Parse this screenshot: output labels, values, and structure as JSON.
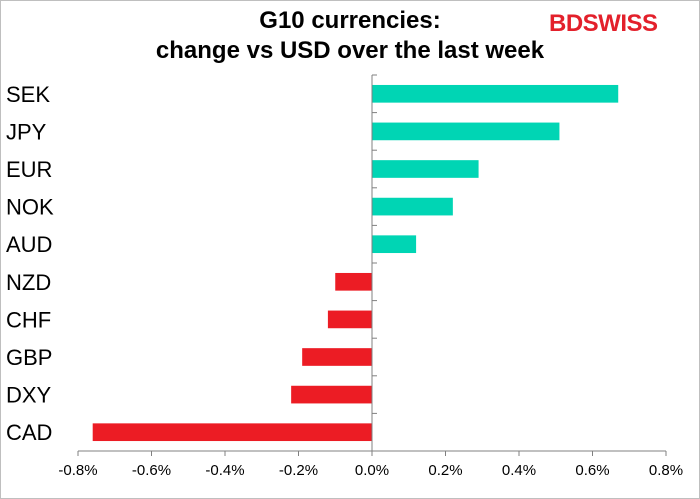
{
  "chart_data": {
    "type": "bar",
    "orientation": "horizontal",
    "title_line1": "G10 currencies:",
    "title_line2": "change vs USD over the last week",
    "categories": [
      "SEK",
      "JPY",
      "EUR",
      "NOK",
      "AUD",
      "NZD",
      "CHF",
      "GBP",
      "DXY",
      "CAD"
    ],
    "values": [
      0.67,
      0.51,
      0.29,
      0.22,
      0.12,
      -0.1,
      -0.12,
      -0.19,
      -0.22,
      -0.76
    ],
    "xlim": [
      -0.8,
      0.8
    ],
    "xticks": [
      "-0.8%",
      "-0.6%",
      "-0.4%",
      "-0.2%",
      "0.0%",
      "0.2%",
      "0.4%",
      "0.6%",
      "0.8%"
    ],
    "xtick_values": [
      -0.8,
      -0.6,
      -0.4,
      -0.2,
      0.0,
      0.2,
      0.4,
      0.6,
      0.8
    ],
    "positive_color": "#00d5b4",
    "negative_color": "#ec1c24",
    "grid": false,
    "legend": "none"
  },
  "logo": {
    "part1": "BD",
    "part2": "SWISS"
  }
}
